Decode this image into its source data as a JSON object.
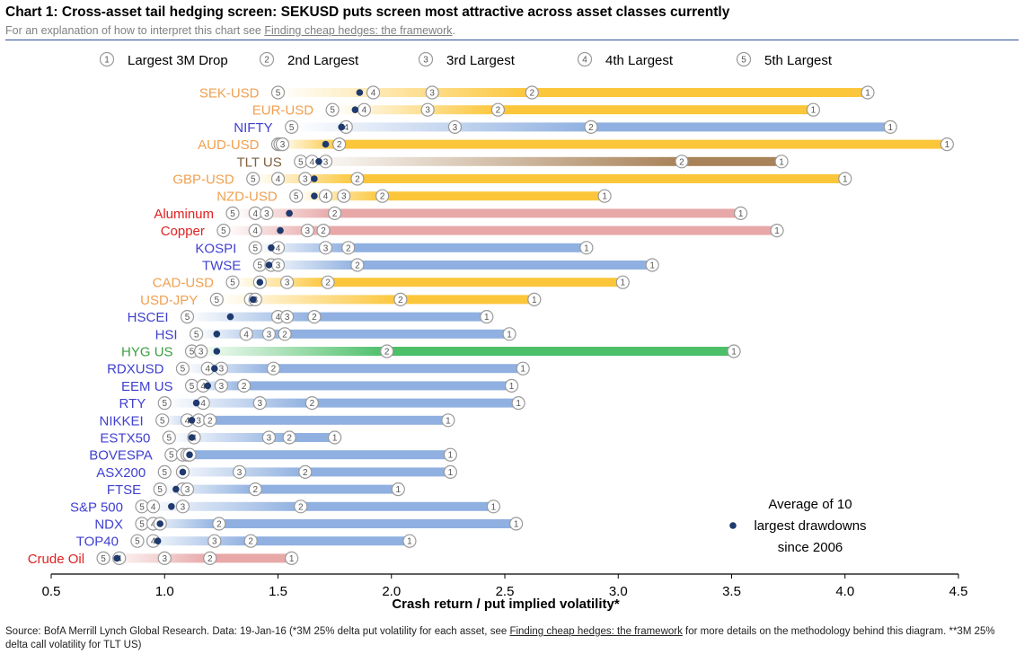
{
  "header": {
    "title": "Chart 1: Cross-asset tail hedging screen: SEKUSD puts screen most attractive across asset classes currently",
    "subtitle_prefix": "For an explanation of how to interpret this chart see ",
    "subtitle_link": "Finding cheap hedges: the framework",
    "subtitle_suffix": "."
  },
  "footer": {
    "source_prefix": "Source: BofA Merrill Lynch Global Research. Data: 19-Jan-16 (*3M 25% delta put volatility for each asset, see ",
    "source_link": "Finding cheap hedges: the framework",
    "source_suffix": " for more details on the methodology behind this diagram. **3M 25% delta call volatility for TLT US)"
  },
  "colors": {
    "fx": "#f0a050",
    "equity": "#4040d0",
    "commodity": "#e02020",
    "rates": "#806040",
    "credit": "#3aa040",
    "avg_dot": "#1f3a6e",
    "axis": "#000000",
    "marker_stroke": "#9a9a9a"
  },
  "chart_data": {
    "type": "dumbbell",
    "title": "Chart 1: Cross-asset tail hedging screen: SEKUSD puts screen most attractive across asset classes currently",
    "xlabel": "Crash return / put implied volatility*",
    "ylabel": "",
    "xlim": [
      0.5,
      4.5
    ],
    "xticks": [
      "0.5",
      "1.0",
      "1.5",
      "2.0",
      "2.5",
      "3.0",
      "3.5",
      "4.0",
      "4.5"
    ],
    "legend": {
      "position": "top",
      "entries": [
        {
          "marker": "1",
          "label": "Largest 3M Drop"
        },
        {
          "marker": "2",
          "label": "2nd Largest"
        },
        {
          "marker": "3",
          "label": "3rd Largest"
        },
        {
          "marker": "4",
          "label": "4th Largest"
        },
        {
          "marker": "5",
          "label": "5th Largest"
        }
      ]
    },
    "annotation_lines": [
      "Average of 10",
      "largest drawdowns",
      "since 2006"
    ],
    "series_keys": [
      "1",
      "2",
      "3",
      "4",
      "5",
      "avg"
    ],
    "rows": [
      {
        "label": "SEK-USD",
        "cls": "fx",
        "v1": 4.1,
        "v2": 2.62,
        "v3": 2.18,
        "v4": 1.92,
        "v5": 1.5,
        "avg": 1.86
      },
      {
        "label": "EUR-USD",
        "cls": "fx",
        "v1": 3.86,
        "v2": 2.47,
        "v3": 2.16,
        "v4": 1.88,
        "v5": 1.74,
        "avg": 1.84
      },
      {
        "label": "NIFTY",
        "cls": "equity",
        "v1": 4.2,
        "v2": 2.88,
        "v3": 2.28,
        "v4": 1.8,
        "v5": 1.56,
        "avg": 1.78
      },
      {
        "label": "AUD-USD",
        "cls": "fx",
        "v1": 4.45,
        "v2": 1.77,
        "v3": 1.52,
        "v4": 1.51,
        "v5": 1.5,
        "avg": 1.71
      },
      {
        "label": "TLT US",
        "cls": "rates",
        "v1": 3.72,
        "v2": 3.28,
        "v3": 1.71,
        "v4": 1.65,
        "v5": 1.6,
        "avg": 1.68
      },
      {
        "label": "GBP-USD",
        "cls": "fx",
        "v1": 4.0,
        "v2": 1.85,
        "v3": 1.62,
        "v4": 1.5,
        "v5": 1.39,
        "avg": 1.66
      },
      {
        "label": "NZD-USD",
        "cls": "fx",
        "v1": 2.94,
        "v2": 1.96,
        "v3": 1.79,
        "v4": 1.71,
        "v5": 1.58,
        "avg": 1.66
      },
      {
        "label": "Aluminum",
        "cls": "commodity",
        "v1": 3.54,
        "v2": 1.75,
        "v3": 1.45,
        "v4": 1.4,
        "v5": 1.3,
        "avg": 1.55
      },
      {
        "label": "Copper",
        "cls": "commodity",
        "v1": 3.7,
        "v2": 1.7,
        "v3": 1.63,
        "v4": 1.4,
        "v5": 1.26,
        "avg": 1.51
      },
      {
        "label": "KOSPI",
        "cls": "equity",
        "v1": 2.86,
        "v2": 1.81,
        "v3": 1.71,
        "v4": 1.5,
        "v5": 1.4,
        "avg": 1.47
      },
      {
        "label": "TWSE",
        "cls": "equity",
        "v1": 3.15,
        "v2": 1.85,
        "v3": 1.5,
        "v4": 1.47,
        "v5": 1.42,
        "avg": 1.46
      },
      {
        "label": "CAD-USD",
        "cls": "fx",
        "v1": 3.02,
        "v2": 1.72,
        "v3": 1.54,
        "v4": 1.42,
        "v5": 1.3,
        "avg": 1.42
      },
      {
        "label": "USD-JPY",
        "cls": "fx",
        "v1": 2.63,
        "v2": 2.04,
        "v3": 1.4,
        "v4": 1.38,
        "v5": 1.23,
        "avg": 1.39
      },
      {
        "label": "HSCEI",
        "cls": "equity",
        "v1": 2.42,
        "v2": 1.66,
        "v3": 1.54,
        "v4": 1.5,
        "v5": 1.1,
        "avg": 1.29
      },
      {
        "label": "HSI",
        "cls": "equity",
        "v1": 2.52,
        "v2": 1.53,
        "v3": 1.46,
        "v4": 1.36,
        "v5": 1.14,
        "avg": 1.23
      },
      {
        "label": "HYG US",
        "cls": "credit",
        "v1": 3.51,
        "v2": 1.98,
        "v3": 1.16,
        "v4": 1.16,
        "v5": 1.12,
        "avg": 1.23
      },
      {
        "label": "RDXUSD",
        "cls": "equity",
        "v1": 2.58,
        "v2": 1.48,
        "v3": 1.25,
        "v4": 1.19,
        "v5": 1.08,
        "avg": 1.22
      },
      {
        "label": "EEM US",
        "cls": "equity",
        "v1": 2.53,
        "v2": 1.35,
        "v3": 1.25,
        "v4": 1.17,
        "v5": 1.12,
        "avg": 1.19
      },
      {
        "label": "RTY",
        "cls": "equity",
        "v1": 2.56,
        "v2": 1.65,
        "v3": 1.42,
        "v4": 1.17,
        "v5": 1.0,
        "avg": 1.14
      },
      {
        "label": "NIKKEI",
        "cls": "equity",
        "v1": 2.25,
        "v2": 1.2,
        "v3": 1.15,
        "v4": 1.1,
        "v5": 0.99,
        "avg": 1.12
      },
      {
        "label": "ESTX50",
        "cls": "equity",
        "v1": 1.75,
        "v2": 1.55,
        "v3": 1.46,
        "v4": 1.13,
        "v5": 1.02,
        "avg": 1.12
      },
      {
        "label": "BOVESPA",
        "cls": "equity",
        "v1": 2.26,
        "v2": 1.11,
        "v3": 1.1,
        "v4": 1.08,
        "v5": 1.03,
        "avg": 1.11
      },
      {
        "label": "ASX200",
        "cls": "equity",
        "v1": 2.26,
        "v2": 1.62,
        "v3": 1.33,
        "v4": 1.08,
        "v5": 1.0,
        "avg": 1.08
      },
      {
        "label": "FTSE",
        "cls": "equity",
        "v1": 2.03,
        "v2": 1.4,
        "v3": 1.1,
        "v4": 1.08,
        "v5": 0.98,
        "avg": 1.05
      },
      {
        "label": "S&P 500",
        "cls": "equity",
        "v1": 2.45,
        "v2": 1.6,
        "v3": 1.08,
        "v4": 0.95,
        "v5": 0.9,
        "avg": 1.03
      },
      {
        "label": "NDX",
        "cls": "equity",
        "v1": 2.55,
        "v2": 1.24,
        "v3": 0.98,
        "v4": 0.95,
        "v5": 0.9,
        "avg": 0.98
      },
      {
        "label": "TOP40",
        "cls": "equity",
        "v1": 2.08,
        "v2": 1.38,
        "v3": 1.22,
        "v4": 0.95,
        "v5": 0.88,
        "avg": 0.97
      },
      {
        "label": "Crude Oil",
        "cls": "commodity",
        "v1": 1.56,
        "v2": 1.2,
        "v3": 1.0,
        "v4": 0.8,
        "v5": 0.73,
        "avg": 0.79
      }
    ]
  }
}
